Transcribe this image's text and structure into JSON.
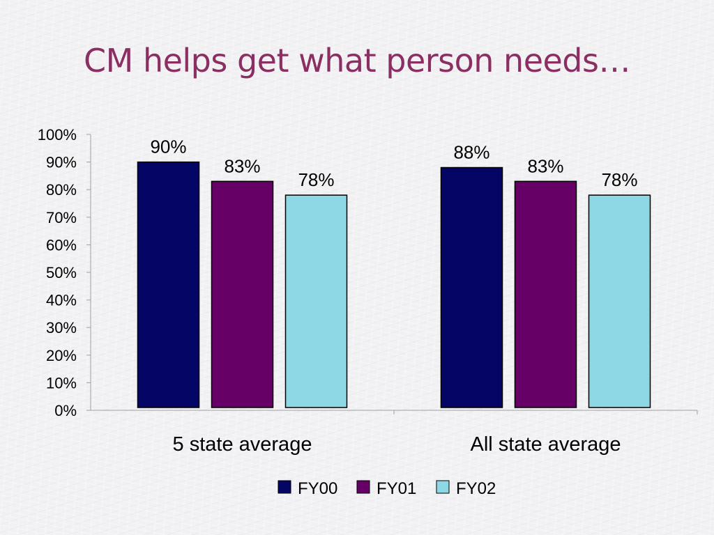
{
  "title": "CM helps get what person needs…",
  "chart_data": {
    "type": "bar",
    "categories": [
      "5 state average",
      "All state average"
    ],
    "series": [
      {
        "name": "FY00",
        "values": [
          90,
          88
        ],
        "labels": [
          "90%",
          "88%"
        ],
        "color": "#050566"
      },
      {
        "name": "FY01",
        "values": [
          83,
          83
        ],
        "labels": [
          "83%",
          "83%"
        ],
        "color": "#660066"
      },
      {
        "name": "FY02",
        "values": [
          78,
          78
        ],
        "labels": [
          "78%",
          "78%"
        ],
        "color": "#8ed8e6"
      }
    ],
    "ylim": [
      0,
      100
    ],
    "yticks": [
      "0%",
      "10%",
      "20%",
      "30%",
      "40%",
      "50%",
      "60%",
      "70%",
      "80%",
      "90%",
      "100%"
    ],
    "grid": false,
    "legend": "bottom",
    "xlabel": "",
    "ylabel": ""
  }
}
